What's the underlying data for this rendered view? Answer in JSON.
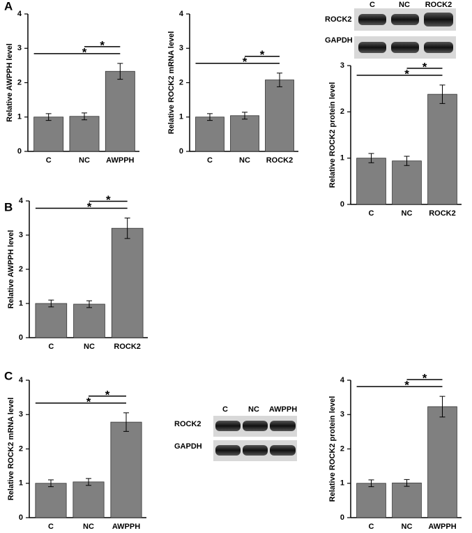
{
  "panels": [
    "A",
    "B",
    "C"
  ],
  "blots": [
    {
      "lanes": [
        "C",
        "NC",
        "ROCK2"
      ],
      "rows": [
        "ROCK2",
        "GAPDH"
      ]
    },
    {
      "lanes": [
        "C",
        "NC",
        "AWPPH"
      ],
      "rows": [
        "ROCK2",
        "GAPDH"
      ]
    }
  ],
  "chart_data": [
    {
      "type": "bar",
      "y_label": "Relative AWPPH level",
      "categories": [
        "C",
        "NC",
        "AWPPH"
      ],
      "values": [
        1.0,
        1.02,
        2.33
      ],
      "errors": [
        0.1,
        0.1,
        0.23
      ],
      "color": "#808080",
      "ylim": [
        0,
        4
      ],
      "yticks": [
        0,
        1,
        2,
        3,
        4
      ],
      "significance": [
        "*",
        "*"
      ]
    },
    {
      "type": "bar",
      "y_label": "Relative ROCK2 mRNA level",
      "categories": [
        "C",
        "NC",
        "ROCK2"
      ],
      "values": [
        1.0,
        1.04,
        2.08
      ],
      "errors": [
        0.1,
        0.1,
        0.2
      ],
      "color": "#808080",
      "ylim": [
        0,
        4
      ],
      "yticks": [
        0,
        1,
        2,
        3,
        4
      ],
      "significance": [
        "*",
        "*"
      ]
    },
    {
      "type": "bar",
      "y_label": "Relative ROCK2 protein level",
      "categories": [
        "C",
        "NC",
        "ROCK2"
      ],
      "values": [
        1.0,
        0.94,
        2.38
      ],
      "errors": [
        0.1,
        0.1,
        0.2
      ],
      "color": "#808080",
      "ylim": [
        0,
        3
      ],
      "yticks": [
        0,
        1,
        2,
        3
      ],
      "significance": [
        "*",
        "*"
      ]
    },
    {
      "type": "bar",
      "y_label": "Relative AWPPH level",
      "categories": [
        "C",
        "NC",
        "ROCK2"
      ],
      "values": [
        1.0,
        0.98,
        3.2
      ],
      "errors": [
        0.1,
        0.1,
        0.3
      ],
      "color": "#808080",
      "ylim": [
        0,
        4
      ],
      "yticks": [
        0,
        1,
        2,
        3,
        4
      ],
      "significance": [
        "*",
        "*"
      ]
    },
    {
      "type": "bar",
      "y_label": "Relative ROCK2 mRNA level",
      "categories": [
        "C",
        "NC",
        "AWPPH"
      ],
      "values": [
        1.0,
        1.04,
        2.78
      ],
      "errors": [
        0.1,
        0.1,
        0.27
      ],
      "color": "#808080",
      "ylim": [
        0,
        4
      ],
      "yticks": [
        0,
        1,
        2,
        3,
        4
      ],
      "significance": [
        "*",
        "*"
      ]
    },
    {
      "type": "bar",
      "y_label": "Relative ROCK2 protein level",
      "categories": [
        "C",
        "NC",
        "AWPPH"
      ],
      "values": [
        1.0,
        1.01,
        3.23
      ],
      "errors": [
        0.1,
        0.1,
        0.3
      ],
      "color": "#808080",
      "ylim": [
        0,
        4
      ],
      "yticks": [
        0,
        1,
        2,
        3,
        4
      ],
      "significance": [
        "*",
        "*"
      ]
    }
  ]
}
